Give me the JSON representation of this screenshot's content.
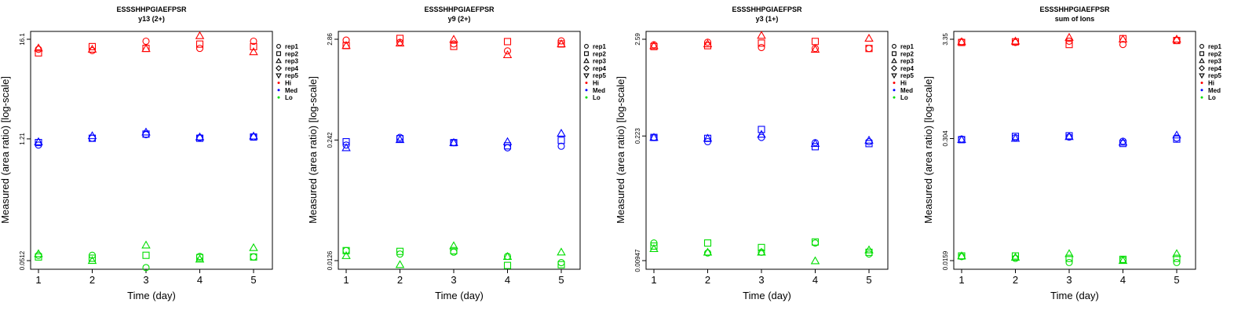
{
  "colors": {
    "Hi": "#ff0000",
    "Med": "#0000ff",
    "Lo": "#00dd00"
  },
  "legend": {
    "reps": [
      {
        "label": "rep1",
        "shape": "circle"
      },
      {
        "label": "rep2",
        "shape": "square"
      },
      {
        "label": "rep3",
        "shape": "triangle"
      },
      {
        "label": "rep4",
        "shape": "diamond"
      },
      {
        "label": "rep5",
        "shape": "triangle-down"
      }
    ],
    "levels": [
      {
        "label": "Hi",
        "key": "Hi"
      },
      {
        "label": "Med",
        "key": "Med"
      },
      {
        "label": "Lo",
        "key": "Lo"
      }
    ]
  },
  "chart_data": [
    {
      "type": "scatter",
      "title": "ESSSHHPGIAEFPSR",
      "subtitle": "y13 (2+)",
      "xlabel": "Time (day)",
      "ylabel": "Measured (area ratio) [log-scale]",
      "log_y": true,
      "x_ticks": [
        1,
        2,
        3,
        4,
        5
      ],
      "y_ticks": [
        "0.0512",
        "1.21",
        "16.1"
      ],
      "ylim": [
        0.0512,
        16.1
      ],
      "xlim": [
        0.84,
        5.16
      ],
      "legend_position": "right",
      "series": [
        {
          "name": "Hi",
          "rep": "rep1",
          "x": [
            1,
            2,
            3,
            4,
            5
          ],
          "y": [
            12.4,
            12.0,
            15.3,
            12.7,
            15.3
          ]
        },
        {
          "name": "Hi",
          "rep": "rep2",
          "x": [
            1,
            2,
            3,
            4,
            5
          ],
          "y": [
            11.3,
            13.3,
            12.7,
            14.2,
            13.3
          ]
        },
        {
          "name": "Hi",
          "rep": "rep3",
          "x": [
            1,
            2,
            3,
            4,
            5
          ],
          "y": [
            12.8,
            12.4,
            12.6,
            17.6,
            11.6
          ]
        },
        {
          "name": "Med",
          "rep": "rep1",
          "x": [
            1,
            2,
            3,
            4,
            5
          ],
          "y": [
            1.03,
            1.23,
            1.35,
            1.25,
            1.27
          ]
        },
        {
          "name": "Med",
          "rep": "rep2",
          "x": [
            1,
            2,
            3,
            4,
            5
          ],
          "y": [
            1.1,
            1.23,
            1.37,
            1.23,
            1.27
          ]
        },
        {
          "name": "Med",
          "rep": "rep3",
          "x": [
            1,
            2,
            3,
            4,
            5
          ],
          "y": [
            1.12,
            1.31,
            1.44,
            1.27,
            1.3
          ]
        },
        {
          "name": "Lo",
          "rep": "rep1",
          "x": [
            1,
            2,
            3,
            4,
            5
          ],
          "y": [
            0.0588,
            0.0588,
            0.0427,
            0.0571,
            0.0563
          ]
        },
        {
          "name": "Lo",
          "rep": "rep2",
          "x": [
            1,
            2,
            3,
            4,
            5
          ],
          "y": [
            0.0563,
            0.0545,
            0.0588,
            0.0554,
            0.0563
          ]
        },
        {
          "name": "Lo",
          "rep": "rep3",
          "x": [
            1,
            2,
            3,
            4,
            5
          ],
          "y": [
            0.0612,
            0.0512,
            0.0765,
            0.0531,
            0.0715
          ]
        }
      ]
    },
    {
      "type": "scatter",
      "title": "ESSSHHPGIAEFPSR",
      "subtitle": "y9 (2+)",
      "xlabel": "Time (day)",
      "ylabel": "Measured (area ratio) [log-scale]",
      "log_y": true,
      "x_ticks": [
        1,
        2,
        3,
        4,
        5
      ],
      "y_ticks": [
        "0.0126",
        "0.242",
        "2.86"
      ],
      "ylim": [
        0.0126,
        2.86
      ],
      "xlim": [
        0.84,
        5.16
      ],
      "legend_position": "right",
      "series": [
        {
          "name": "Hi",
          "rep": "rep1",
          "x": [
            1,
            2,
            3,
            4,
            5
          ],
          "y": [
            2.8,
            2.65,
            2.55,
            2.15,
            2.75
          ]
        },
        {
          "name": "Hi",
          "rep": "rep2",
          "x": [
            1,
            2,
            3,
            4,
            5
          ],
          "y": [
            2.45,
            2.92,
            2.4,
            2.7,
            2.55
          ]
        },
        {
          "name": "Hi",
          "rep": "rep3",
          "x": [
            1,
            2,
            3,
            4,
            5
          ],
          "y": [
            2.45,
            2.6,
            2.85,
            1.95,
            2.55
          ]
        },
        {
          "name": "Med",
          "rep": "rep1",
          "x": [
            1,
            2,
            3,
            4,
            5
          ],
          "y": [
            0.214,
            0.258,
            0.227,
            0.2,
            0.208
          ]
        },
        {
          "name": "Med",
          "rep": "rep2",
          "x": [
            1,
            2,
            3,
            4,
            5
          ],
          "y": [
            0.232,
            0.25,
            0.227,
            0.21,
            0.24
          ]
        },
        {
          "name": "Med",
          "rep": "rep3",
          "x": [
            1,
            2,
            3,
            4,
            5
          ],
          "y": [
            0.2,
            0.244,
            0.227,
            0.232,
            0.285
          ]
        },
        {
          "name": "Lo",
          "rep": "rep1",
          "x": [
            1,
            2,
            3,
            4,
            5
          ],
          "y": [
            0.0161,
            0.0148,
            0.0155,
            0.014,
            0.012
          ]
        },
        {
          "name": "Lo",
          "rep": "rep2",
          "x": [
            1,
            2,
            3,
            4,
            5
          ],
          "y": [
            0.0161,
            0.0158,
            0.0161,
            0.0112,
            0.0114
          ]
        },
        {
          "name": "Lo",
          "rep": "rep3",
          "x": [
            1,
            2,
            3,
            4,
            5
          ],
          "y": [
            0.0142,
            0.0114,
            0.0181,
            0.0139,
            0.0155
          ]
        }
      ]
    },
    {
      "type": "scatter",
      "title": "ESSSHHPGIAEFPSR",
      "subtitle": "y3 (1+)",
      "xlabel": "Time (day)",
      "ylabel": "Measured (area ratio) [log-scale]",
      "log_y": true,
      "x_ticks": [
        1,
        2,
        3,
        4,
        5
      ],
      "y_ticks": [
        "0.00947",
        "0.223",
        "2.59"
      ],
      "ylim": [
        0.00947,
        2.59
      ],
      "xlim": [
        0.84,
        5.16
      ],
      "legend_position": "right",
      "series": [
        {
          "name": "Hi",
          "rep": "rep1",
          "x": [
            1,
            2,
            3,
            4,
            5
          ],
          "y": [
            2.25,
            2.4,
            2.1,
            2.05,
            2.05
          ]
        },
        {
          "name": "Hi",
          "rep": "rep2",
          "x": [
            1,
            2,
            3,
            4,
            5
          ],
          "y": [
            2.15,
            2.2,
            2.35,
            2.45,
            2.05
          ]
        },
        {
          "name": "Hi",
          "rep": "rep3",
          "x": [
            1,
            2,
            3,
            4,
            5
          ],
          "y": [
            2.2,
            2.3,
            2.85,
            2.0,
            2.65
          ]
        },
        {
          "name": "Med",
          "rep": "rep1",
          "x": [
            1,
            2,
            3,
            4,
            5
          ],
          "y": [
            0.215,
            0.193,
            0.215,
            0.188,
            0.193
          ]
        },
        {
          "name": "Med",
          "rep": "rep2",
          "x": [
            1,
            2,
            3,
            4,
            5
          ],
          "y": [
            0.215,
            0.21,
            0.263,
            0.17,
            0.184
          ]
        },
        {
          "name": "Med",
          "rep": "rep3",
          "x": [
            1,
            2,
            3,
            4,
            5
          ],
          "y": [
            0.215,
            0.21,
            0.232,
            0.184,
            0.2
          ]
        },
        {
          "name": "Lo",
          "rep": "rep1",
          "x": [
            1,
            2,
            3,
            4,
            5
          ],
          "y": [
            0.0148,
            0.0115,
            0.0117,
            0.0148,
            0.0112
          ]
        },
        {
          "name": "Lo",
          "rep": "rep2",
          "x": [
            1,
            2,
            3,
            4,
            5
          ],
          "y": [
            0.0137,
            0.0148,
            0.0132,
            0.0152,
            0.0117
          ]
        },
        {
          "name": "Lo",
          "rep": "rep3",
          "x": [
            1,
            2,
            3,
            4,
            5
          ],
          "y": [
            0.0128,
            0.0117,
            0.0117,
            0.0094,
            0.0124
          ]
        }
      ]
    },
    {
      "type": "scatter",
      "title": "ESSSHHPGIAEFPSR",
      "subtitle": "sum of Ions",
      "xlabel": "Time (day)",
      "ylabel": "Measured (area ratio) [log-scale]",
      "log_y": true,
      "x_ticks": [
        1,
        2,
        3,
        4,
        5
      ],
      "y_ticks": [
        "0.0159",
        "0.304",
        "3.35"
      ],
      "ylim": [
        0.0159,
        3.35
      ],
      "xlim": [
        0.84,
        5.16
      ],
      "legend_position": "right",
      "series": [
        {
          "name": "Hi",
          "rep": "rep1",
          "x": [
            1,
            2,
            3,
            4,
            5
          ],
          "y": [
            3.15,
            3.1,
            3.2,
            2.95,
            3.25
          ]
        },
        {
          "name": "Hi",
          "rep": "rep2",
          "x": [
            1,
            2,
            3,
            4,
            5
          ],
          "y": [
            3.1,
            3.15,
            2.95,
            3.4,
            3.25
          ]
        },
        {
          "name": "Hi",
          "rep": "rep3",
          "x": [
            1,
            2,
            3,
            4,
            5
          ],
          "y": [
            3.15,
            3.2,
            3.5,
            3.35,
            3.35
          ]
        },
        {
          "name": "Med",
          "rep": "rep1",
          "x": [
            1,
            2,
            3,
            4,
            5
          ],
          "y": [
            0.3,
            0.31,
            0.315,
            0.285,
            0.307
          ]
        },
        {
          "name": "Med",
          "rep": "rep2",
          "x": [
            1,
            2,
            3,
            4,
            5
          ],
          "y": [
            0.296,
            0.32,
            0.325,
            0.27,
            0.3
          ]
        },
        {
          "name": "Med",
          "rep": "rep3",
          "x": [
            1,
            2,
            3,
            4,
            5
          ],
          "y": [
            0.296,
            0.305,
            0.318,
            0.278,
            0.33
          ]
        },
        {
          "name": "Lo",
          "rep": "rep1",
          "x": [
            1,
            2,
            3,
            4,
            5
          ],
          "y": [
            0.0175,
            0.0168,
            0.0152,
            0.0162,
            0.0152
          ]
        },
        {
          "name": "Lo",
          "rep": "rep2",
          "x": [
            1,
            2,
            3,
            4,
            5
          ],
          "y": [
            0.0178,
            0.0178,
            0.0168,
            0.0164,
            0.0168
          ]
        },
        {
          "name": "Lo",
          "rep": "rep3",
          "x": [
            1,
            2,
            3,
            4,
            5
          ],
          "y": [
            0.0178,
            0.0172,
            0.0188,
            0.0159,
            0.0188
          ]
        }
      ]
    }
  ]
}
